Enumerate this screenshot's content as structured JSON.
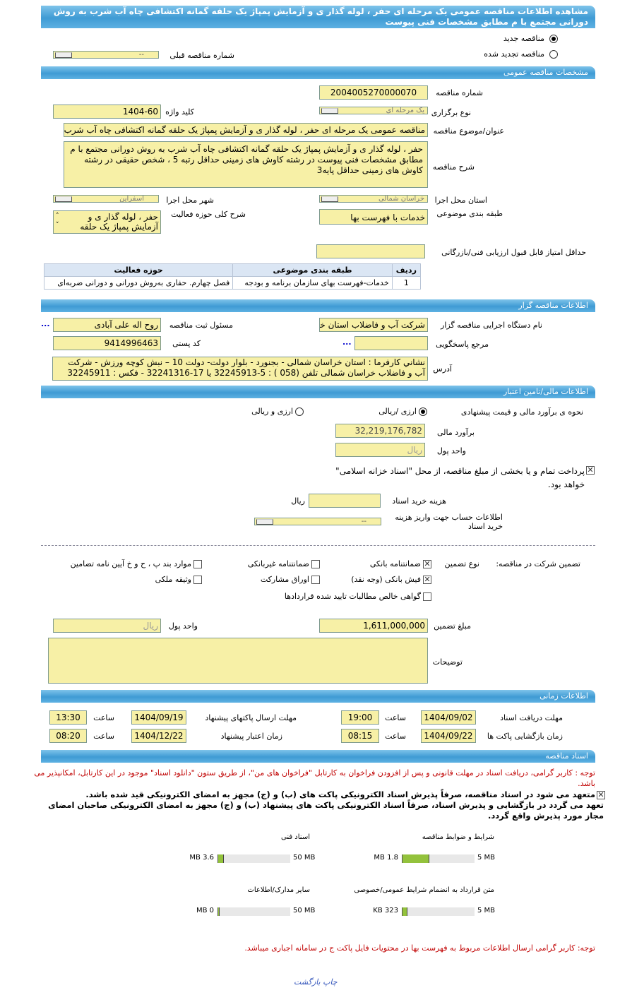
{
  "title": "مشاهده اطلاعات مناقصه عمومی یک مرحله ای حفر ، لوله گذار ی و آزمایش پمپاژ یک حلقه گمانه اکتشافی چاه آب شرب به روش دورانی مجتمع با م مطابق مشخصات فنی پیوست",
  "tender_kind": {
    "new_label": "مناقصه جدید",
    "new_selected": true,
    "renewed_label": "مناقصه تجدید شده",
    "prev_number_label": "شماره مناقصه قبلی",
    "prev_number_value": "--"
  },
  "general": {
    "header": "مشخصات مناقصه عمومی",
    "number_label": "شماره مناقصه",
    "number": "2004005270000070",
    "type_label": "نوع برگزاری",
    "type": "یک مرحله ای",
    "keyword_label": "کلید واژه",
    "keyword": "1404-60",
    "subject_label": "عنوان/موضوع مناقصه",
    "subject": "مناقصه عمومی یک مرحله ای حفر ، لوله گذار ی و آزمایش پمپاژ یک حلقه گمانه اکتشافی چاه آب شرب",
    "description_label": "شرح مناقصه",
    "description": "حفر ، لوله گذار ی و آزمایش پمپاژ یک حلقه گمانه اکتشافی چاه آب شرب به روش دورانی مجتمع با م مطابق مشخصات فنی پیوست در رشته کاوش های زمینی حداقل رتبه 5 ، شخص حقیقی در رشته کاوش های زمینی حداقل پایه3",
    "province_label": "استان محل اجرا",
    "province": "خراسان شمالی",
    "city_label": "شهر محل اجرا",
    "city": "اسفراین",
    "category_label": "طبقه بندی موضوعی",
    "category": "خدمات با فهرست بها",
    "scope_label": "شرح کلی حوزه فعالیت",
    "scope": "حفر ، لوله گذار ی و آزمایش پمپاژ یک حلقه",
    "min_score_label": "حداقل امتياز قابل قبول ارزیابی فنی/بازرگانی",
    "min_score": "",
    "table": {
      "headers": [
        "ردیف",
        "طبقه بندی موضوعی",
        "حوزه فعالیت"
      ],
      "rows": [
        [
          "1",
          "خدمات-فهرست بهای سازمان برنامه و بودجه",
          "فصل چهارم. حفاری به‌روش دورانی و دورانی ضربه‌ای"
        ]
      ]
    }
  },
  "organizer": {
    "header": "اطلاعات مناقصه گزار",
    "org_label": "نام دستگاه اجرایی مناقصه گزار",
    "org": "شرکت آب و فاضلاب استان خراسان شمالی",
    "responsible_label": "مسئول ثبت مناقصه",
    "responsible": "روح اله  علی آبادی",
    "reference_label": "مرجع پاسخگویی",
    "reference": "",
    "postal_label": "کد پستی",
    "postal": "9414996463",
    "address_label": "آدرس",
    "address": "نشاني كارفرما : استان خراسان شمالی - بجنورد - بلوار دولت- دولت 10 – نبش کوچه ورزش - شرکت آب و فاضلاب خراسان شمالی تلفن (058 ) : 5-32245913  یا  17-32241316 -  فکس : 32245911",
    "more": "..."
  },
  "finance": {
    "header": "اطلاعات مالی/تامین اعتبار",
    "method_label": "نحوه ی برآورد مالی و قیمت پیشنهادی",
    "opt1": "ارزی /ریالی",
    "opt2": "ارزی و ریالی",
    "estimate_label": "برآورد مالی",
    "estimate": "32,219,176,782",
    "currency_label": "واحد پول",
    "currency": "ریال",
    "treasury_text": "پرداخت تمام و یا بخشی از مبلغ مناقصه، از محل \"اسناد خزانه اسلامی\" خواهد بود.",
    "doc_cost_label": "هزینه خرید اسناد",
    "doc_cost": "",
    "doc_cost_unit": "ریال",
    "account_label": "اطلاعات حساب جهت واریز هزینه خرید اسناد",
    "account": "--"
  },
  "guarantee": {
    "label": "تضمین شرکت در مناقصه:",
    "type_label": "نوع تضمین",
    "options": [
      {
        "label": "ضمانتنامه بانکی",
        "checked": true
      },
      {
        "label": "ضمانتنامه غیربانکی",
        "checked": false
      },
      {
        "label": "موارد بند پ ، ح و خ آیین نامه تضامین",
        "checked": false
      },
      {
        "label": "فیش بانکی (وجه نقد)",
        "checked": true
      },
      {
        "label": "اوراق مشارکت",
        "checked": false
      },
      {
        "label": "وثیقه ملکی",
        "checked": false
      },
      {
        "label": "گواهی خالص مطالبات تایید شده قراردادها",
        "checked": false
      }
    ],
    "amount_label": "مبلغ تضمین",
    "amount": "1,611,000,000",
    "unit_label": "واحد پول",
    "unit": "ریال",
    "notes_label": "توضیحات",
    "notes": ""
  },
  "timing": {
    "header": "اطلاعات زمانی",
    "hour_label": "ساعت",
    "doc_deadline_label": "مهلت دریافت اسناد",
    "doc_deadline_date": "1404/09/02",
    "doc_deadline_time": "19:00",
    "submit_label": "مهلت ارسال پاکتهای پیشنهاد",
    "submit_date": "1404/09/19",
    "submit_time": "13:30",
    "open_label": "زمان بازگشایی پاکت ها",
    "open_date": "1404/09/22",
    "open_time": "08:15",
    "validity_label": "زمان اعتبار پیشنهاد",
    "validity_date": "1404/12/22",
    "validity_time": "08:20"
  },
  "documents": {
    "header": "اسناد مناقصه",
    "notice": "توجه : کاربر گرامی، دریافت اسناد در مهلت قانونی و پس از افزودن فراخوان به کارتابل \"فراخوان های من\"، از طریق ستون \"دانلود اسناد\" موجود در این کارتابل، امکانپذیر می باشد.",
    "commit1": "متعهد می شود در اسناد مناقصه، صرفاً پذیرش اسناد الکترونیکی پاکت های (ب) و (ج) مجهز به امضای الکترونیکی قید شده باشد.",
    "commit2": "تعهد می گردد در بازگشایی و پذیرش اسناد، صرفاً اسناد الکترونیکی پاکت های پیشنهاد (ب) و (ج) مجهز به امضای الکترونیکی صاحبان امضای مجاز مورد پذیرش واقع گردد.",
    "files": [
      {
        "label": "شرایط و ضوابط مناقصه",
        "max": "5 MB",
        "size": "1.8 MB",
        "fill": 0.36
      },
      {
        "label": "اسناد فنی",
        "max": "50 MB",
        "size": "3.6 MB",
        "fill": 0.072
      },
      {
        "label": "متن قرارداد به انضمام شرایط عمومی/خصوصی",
        "max": "5 MB",
        "size": "323 KB",
        "fill": 0.063
      },
      {
        "label": "سایر مدارک/اطلاعات",
        "max": "50 MB",
        "size": "0 MB",
        "fill": 0
      }
    ],
    "note2": "توجه: کاربر گرامی ارسال اطلاعات مربوط به فهرست بها در محتویات فایل پاکت ج در سامانه اجباری میباشد.",
    "print_link": "چاپ بازگشت"
  }
}
